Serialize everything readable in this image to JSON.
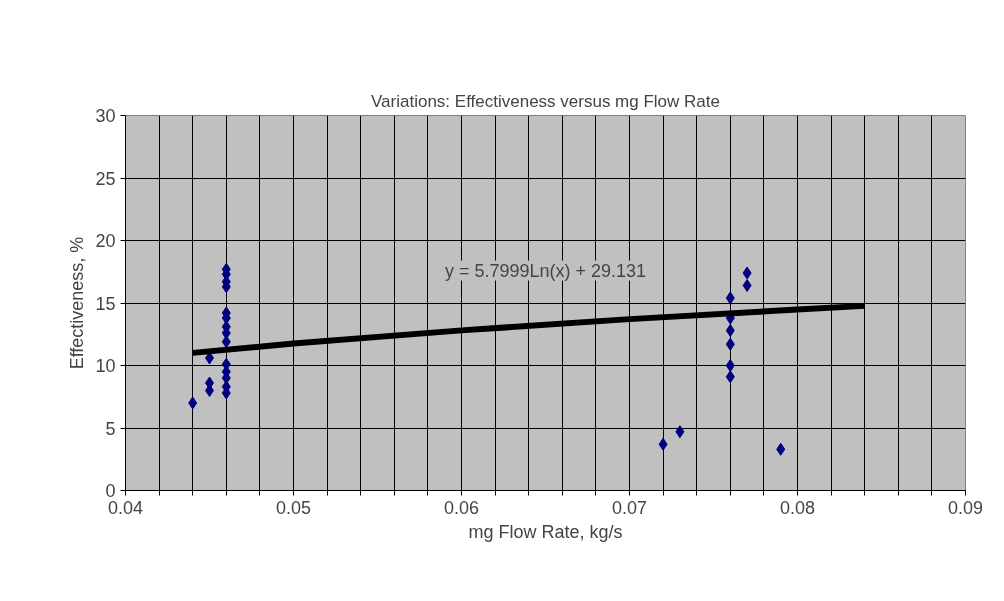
{
  "chart_data": {
    "type": "scatter",
    "title": "Variations: Effectiveness versus mg Flow Rate",
    "xlabel": "mg Flow Rate, kg/s",
    "ylabel": "Effectiveness, %",
    "xlim": [
      0.04,
      0.09
    ],
    "ylim": [
      0,
      30
    ],
    "xticks": [
      0.04,
      {
        "value": 0.042,
        "label": null
      },
      {
        "value": 0.044,
        "label": null
      },
      {
        "value": 0.046,
        "label": null
      },
      {
        "value": 0.048,
        "label": null
      },
      0.05,
      {
        "value": 0.052,
        "label": null
      },
      {
        "value": 0.054,
        "label": null
      },
      {
        "value": 0.056,
        "label": null
      },
      {
        "value": 0.058,
        "label": null
      },
      0.06,
      {
        "value": 0.062,
        "label": null
      },
      {
        "value": 0.064,
        "label": null
      },
      {
        "value": 0.066,
        "label": null
      },
      {
        "value": 0.068,
        "label": null
      },
      0.07,
      {
        "value": 0.072,
        "label": null
      },
      {
        "value": 0.074,
        "label": null
      },
      {
        "value": 0.076,
        "label": null
      },
      {
        "value": 0.078,
        "label": null
      },
      0.08,
      {
        "value": 0.082,
        "label": null
      },
      {
        "value": 0.084,
        "label": null
      },
      {
        "value": 0.086,
        "label": null
      },
      {
        "value": 0.088,
        "label": null
      },
      0.09
    ],
    "yticks": [
      0,
      5,
      10,
      15,
      20,
      25,
      30
    ],
    "grid": true,
    "marker": "diamond",
    "series": [
      {
        "color": "#000080",
        "x": [
          0.044,
          0.045,
          0.045,
          0.045,
          0.046,
          0.046,
          0.046,
          0.046,
          0.046,
          0.046,
          0.046,
          0.046,
          0.046,
          0.046,
          0.046,
          0.046,
          0.046,
          0.046,
          0.072,
          0.073,
          0.076,
          0.076,
          0.076,
          0.076,
          0.076,
          0.076,
          0.077,
          0.077,
          0.079
        ],
        "values": [
          7.0,
          8.0,
          8.6,
          10.6,
          17.7,
          17.3,
          16.7,
          16.3,
          14.2,
          13.8,
          13.1,
          12.6,
          11.9,
          10.1,
          9.5,
          9.0,
          8.3,
          7.8,
          3.7,
          4.7,
          15.4,
          13.8,
          12.8,
          11.7,
          10.0,
          9.1,
          17.4,
          16.4,
          3.3
        ]
      },
      {
        "type": "line",
        "color": "#000000",
        "marker": "none",
        "line_style": "solid",
        "x": [
          0.044,
          0.05,
          0.06,
          0.07,
          0.08,
          0.084
        ],
        "values": [
          11.01,
          11.76,
          12.81,
          13.71,
          14.48,
          14.77
        ]
      }
    ],
    "annotations": [
      "y = 5.7999Ln(x) + 29.131"
    ]
  }
}
